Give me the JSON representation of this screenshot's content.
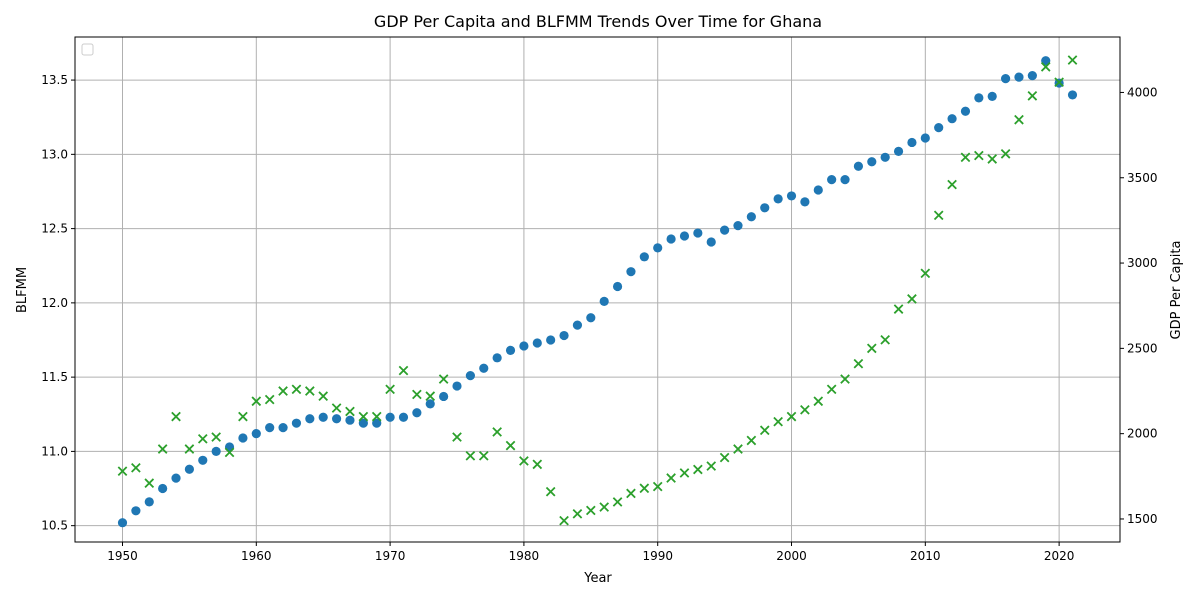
{
  "chart_data": {
    "type": "scatter",
    "title": "GDP Per Capita and BLFMM Trends Over Time for Ghana",
    "xlabel": "Year",
    "ylabel_left": "BLFMM",
    "ylabel_right": "GDP Per Capita",
    "xlim": [
      1946.45,
      2024.55
    ],
    "ylim_left": [
      10.39,
      13.79
    ],
    "ylim_right": [
      1365,
      4325
    ],
    "xticks": [
      1950,
      1960,
      1970,
      1980,
      1990,
      2000,
      2010,
      2020
    ],
    "yticks_left": [
      10.5,
      11.0,
      11.5,
      12.0,
      12.5,
      13.0,
      13.5
    ],
    "yticks_right": [
      1500,
      2000,
      2500,
      3000,
      3500,
      4000
    ],
    "grid": true,
    "legend": "top-left (empty)",
    "colors": {
      "blfmm": "#1f77b4",
      "gdp": "#2ca02c"
    },
    "x": [
      1950,
      1951,
      1952,
      1953,
      1954,
      1955,
      1956,
      1957,
      1958,
      1959,
      1960,
      1961,
      1962,
      1963,
      1964,
      1965,
      1966,
      1967,
      1968,
      1969,
      1970,
      1971,
      1972,
      1973,
      1974,
      1975,
      1976,
      1977,
      1978,
      1979,
      1980,
      1981,
      1982,
      1983,
      1984,
      1985,
      1986,
      1987,
      1988,
      1989,
      1990,
      1991,
      1992,
      1993,
      1994,
      1995,
      1996,
      1997,
      1998,
      1999,
      2000,
      2001,
      2002,
      2003,
      2004,
      2005,
      2006,
      2007,
      2008,
      2009,
      2010,
      2011,
      2012,
      2013,
      2014,
      2015,
      2016,
      2017,
      2018,
      2019,
      2020,
      2021
    ],
    "series": [
      {
        "axis": "left",
        "marker": "circle",
        "values": [
          10.52,
          10.6,
          10.66,
          10.75,
          10.82,
          10.88,
          10.94,
          11.0,
          11.03,
          11.09,
          11.12,
          11.16,
          11.16,
          11.19,
          11.22,
          11.23,
          11.22,
          11.21,
          11.19,
          11.19,
          11.23,
          11.23,
          11.26,
          11.32,
          11.37,
          11.44,
          11.51,
          11.56,
          11.63,
          11.68,
          11.71,
          11.73,
          11.75,
          11.78,
          11.85,
          11.9,
          12.01,
          12.11,
          12.21,
          12.31,
          12.37,
          12.43,
          12.45,
          12.47,
          12.41,
          12.49,
          12.52,
          12.58,
          12.64,
          12.7,
          12.72,
          12.68,
          12.76,
          12.83,
          12.83,
          12.92,
          12.95,
          12.98,
          13.02,
          13.08,
          13.11,
          13.18,
          13.24,
          13.29,
          13.38,
          13.39,
          13.51,
          13.52,
          13.53,
          13.63,
          13.48,
          13.4
        ]
      },
      {
        "axis": "right",
        "marker": "x",
        "values": [
          1780,
          1800,
          1710,
          1910,
          2100,
          1910,
          1970,
          1980,
          1890,
          2100,
          2190,
          2200,
          2250,
          2260,
          2250,
          2220,
          2150,
          2130,
          2100,
          2100,
          2260,
          2370,
          2230,
          2220,
          2320,
          1980,
          1870,
          1870,
          2010,
          1930,
          1840,
          1820,
          1660,
          1490,
          1530,
          1550,
          1570,
          1600,
          1650,
          1680,
          1690,
          1740,
          1770,
          1790,
          1810,
          1860,
          1910,
          1960,
          2020,
          2070,
          2100,
          2140,
          2190,
          2260,
          2320,
          2410,
          2500,
          2550,
          2730,
          2790,
          2940,
          3280,
          3460,
          3620,
          3630,
          3610,
          3640,
          3840,
          3980,
          4150,
          4060,
          4190
        ]
      }
    ]
  }
}
